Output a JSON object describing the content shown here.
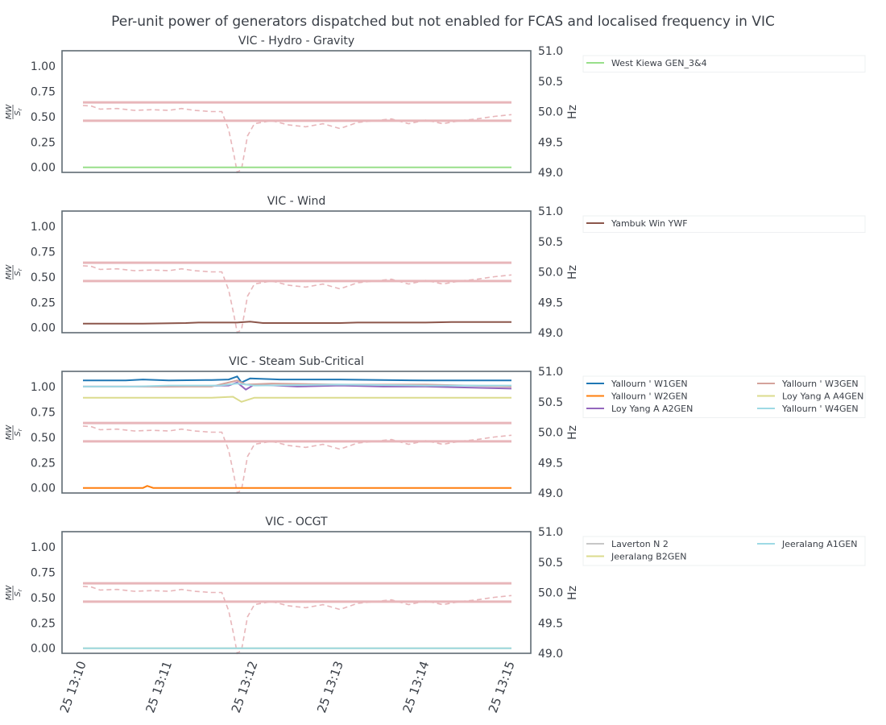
{
  "figure_title": "Per-unit power of generators dispatched but not enabled for FCAS and localised frequency in VIC",
  "freq_band_colors": "#e8b6ba",
  "x_tick_labels": [
    "25 13:10",
    "25 13:11",
    "25 13:12",
    "25 13:13",
    "25 13:14",
    "25 13:15"
  ],
  "chart_data": [
    {
      "type": "line",
      "title": "VIC - Hydro - Gravity",
      "ylabel": "MW/S_r",
      "ylabel_right": "Hz",
      "ylim": [
        -0.05,
        1.15
      ],
      "ylim_right": [
        49.0,
        51.0
      ],
      "yticks": [
        "0.00",
        "0.25",
        "0.50",
        "0.75",
        "1.00"
      ],
      "yticks_right": [
        "49.0",
        "49.5",
        "50.0",
        "50.5",
        "51.0"
      ],
      "x": [
        "13:10",
        "13:15"
      ],
      "series": [
        {
          "name": "West Kiewa GEN_3&4",
          "color": "#98df8a",
          "points": [
            [
              0,
              0.0
            ],
            [
              5,
              0.0
            ]
          ]
        }
      ],
      "frequency_band_hz": [
        49.85,
        50.15
      ],
      "frequency_trace_hz": [
        [
          0,
          50.1
        ],
        [
          0.1,
          50.09
        ],
        [
          0.2,
          50.04
        ],
        [
          0.4,
          50.05
        ],
        [
          0.6,
          50.02
        ],
        [
          0.8,
          50.03
        ],
        [
          1.0,
          50.02
        ],
        [
          1.15,
          50.05
        ],
        [
          1.3,
          50.02
        ],
        [
          1.5,
          50.0
        ],
        [
          1.62,
          50.0
        ],
        [
          1.7,
          49.7
        ],
        [
          1.76,
          49.3
        ],
        [
          1.8,
          49.0
        ],
        [
          1.85,
          49.05
        ],
        [
          1.92,
          49.6
        ],
        [
          2.0,
          49.8
        ],
        [
          2.2,
          49.85
        ],
        [
          2.4,
          49.78
        ],
        [
          2.6,
          49.75
        ],
        [
          2.8,
          49.8
        ],
        [
          3.0,
          49.72
        ],
        [
          3.2,
          49.82
        ],
        [
          3.4,
          49.85
        ],
        [
          3.6,
          49.88
        ],
        [
          3.8,
          49.8
        ],
        [
          4.0,
          49.86
        ],
        [
          4.2,
          49.8
        ],
        [
          4.4,
          49.85
        ],
        [
          4.6,
          49.88
        ],
        [
          4.8,
          49.92
        ],
        [
          5.0,
          49.95
        ]
      ],
      "legend_columns": 1
    },
    {
      "type": "line",
      "title": "VIC - Wind",
      "ylabel": "MW/S_r",
      "ylabel_right": "Hz",
      "ylim": [
        -0.05,
        1.15
      ],
      "ylim_right": [
        49.0,
        51.0
      ],
      "yticks": [
        "0.00",
        "0.25",
        "0.50",
        "0.75",
        "1.00"
      ],
      "yticks_right": [
        "49.0",
        "49.5",
        "50.0",
        "50.5",
        "51.0"
      ],
      "series": [
        {
          "name": "Yambuk Win YWF",
          "color": "#8c564b",
          "points": [
            [
              0,
              0.04
            ],
            [
              0.7,
              0.04
            ],
            [
              1.2,
              0.045
            ],
            [
              1.35,
              0.05
            ],
            [
              1.8,
              0.05
            ],
            [
              1.95,
              0.06
            ],
            [
              2.1,
              0.045
            ],
            [
              3.0,
              0.045
            ],
            [
              3.2,
              0.05
            ],
            [
              4.0,
              0.05
            ],
            [
              4.3,
              0.055
            ],
            [
              4.8,
              0.055
            ],
            [
              5.0,
              0.055
            ]
          ]
        }
      ],
      "frequency_band_hz": [
        49.85,
        50.15
      ],
      "legend_columns": 1
    },
    {
      "type": "line",
      "title": "VIC - Steam Sub-Critical",
      "ylabel": "MW/S_r",
      "ylabel_right": "Hz",
      "ylim": [
        -0.05,
        1.15
      ],
      "ylim_right": [
        49.0,
        51.0
      ],
      "yticks": [
        "0.00",
        "0.25",
        "0.50",
        "0.75",
        "1.00"
      ],
      "yticks_right": [
        "49.0",
        "49.5",
        "50.0",
        "50.5",
        "51.0"
      ],
      "series": [
        {
          "name": "Yallourn ' W1GEN",
          "color": "#1f77b4",
          "points": [
            [
              0,
              1.06
            ],
            [
              0.5,
              1.06
            ],
            [
              0.7,
              1.07
            ],
            [
              1.0,
              1.06
            ],
            [
              1.5,
              1.065
            ],
            [
              1.7,
              1.07
            ],
            [
              1.8,
              1.1
            ],
            [
              1.85,
              1.04
            ],
            [
              1.95,
              1.08
            ],
            [
              2.3,
              1.07
            ],
            [
              3.0,
              1.07
            ],
            [
              3.5,
              1.065
            ],
            [
              4.0,
              1.06
            ],
            [
              5.0,
              1.06
            ]
          ]
        },
        {
          "name": "Yallourn ' W2GEN",
          "color": "#ff7f0e",
          "points": [
            [
              0,
              0.0
            ],
            [
              0.7,
              0.0
            ],
            [
              0.75,
              0.02
            ],
            [
              0.82,
              0.0
            ],
            [
              5.0,
              0.0
            ]
          ]
        },
        {
          "name": "Loy Yang A A2GEN",
          "color": "#9467bd",
          "points": [
            [
              0,
              1.0
            ],
            [
              1.0,
              1.0
            ],
            [
              1.7,
              1.01
            ],
            [
              1.8,
              1.04
            ],
            [
              1.9,
              0.97
            ],
            [
              2.0,
              1.02
            ],
            [
              2.5,
              1.0
            ],
            [
              3.0,
              1.01
            ],
            [
              3.5,
              1.0
            ],
            [
              4.0,
              1.0
            ],
            [
              5.0,
              0.98
            ]
          ]
        },
        {
          "name": "Yallourn ' W3GEN",
          "color": "#d4a29b",
          "points": [
            [
              0,
              1.0
            ],
            [
              1.5,
              1.0
            ],
            [
              1.8,
              1.06
            ],
            [
              1.9,
              1.02
            ],
            [
              2.2,
              1.03
            ],
            [
              3.0,
              1.02
            ],
            [
              3.5,
              1.02
            ],
            [
              4.0,
              1.02
            ],
            [
              5.0,
              1.0
            ]
          ]
        },
        {
          "name": "Loy Yang A A4GEN",
          "color": "#dbdb8d",
          "points": [
            [
              0,
              0.89
            ],
            [
              0.5,
              0.89
            ],
            [
              1.0,
              0.89
            ],
            [
              1.5,
              0.89
            ],
            [
              1.75,
              0.9
            ],
            [
              1.85,
              0.85
            ],
            [
              2.0,
              0.89
            ],
            [
              3.0,
              0.89
            ],
            [
              4.0,
              0.89
            ],
            [
              5.0,
              0.89
            ]
          ]
        },
        {
          "name": "Yallourn ' W4GEN",
          "color": "#9edae5",
          "points": [
            [
              0,
              1.0
            ],
            [
              0.6,
              1.0
            ],
            [
              1.0,
              1.01
            ],
            [
              1.6,
              1.01
            ],
            [
              1.8,
              1.03
            ],
            [
              2.0,
              1.01
            ],
            [
              3.0,
              1.02
            ],
            [
              4.0,
              1.01
            ],
            [
              5.0,
              1.01
            ]
          ]
        }
      ],
      "frequency_band_hz": [
        49.85,
        50.15
      ],
      "legend_columns": 2
    },
    {
      "type": "line",
      "title": "VIC - OCGT",
      "ylabel": "MW/S_r",
      "ylabel_right": "Hz",
      "ylim": [
        -0.05,
        1.15
      ],
      "ylim_right": [
        49.0,
        51.0
      ],
      "yticks": [
        "0.00",
        "0.25",
        "0.50",
        "0.75",
        "1.00"
      ],
      "yticks_right": [
        "49.0",
        "49.5",
        "50.0",
        "50.5",
        "51.0"
      ],
      "series": [
        {
          "name": "Laverton N 2",
          "color": "#c7c7c7",
          "points": [
            [
              0,
              0.0
            ],
            [
              5,
              0.0
            ]
          ]
        },
        {
          "name": "Jeeralang  B2GEN",
          "color": "#dbdb8d",
          "points": [
            [
              0,
              0.0
            ],
            [
              5,
              0.0
            ]
          ]
        },
        {
          "name": "Jeeralang  A1GEN",
          "color": "#9edae5",
          "points": [
            [
              0,
              0.0
            ],
            [
              5,
              0.0
            ]
          ]
        }
      ],
      "frequency_band_hz": [
        49.85,
        50.15
      ],
      "legend_columns": 2
    }
  ]
}
